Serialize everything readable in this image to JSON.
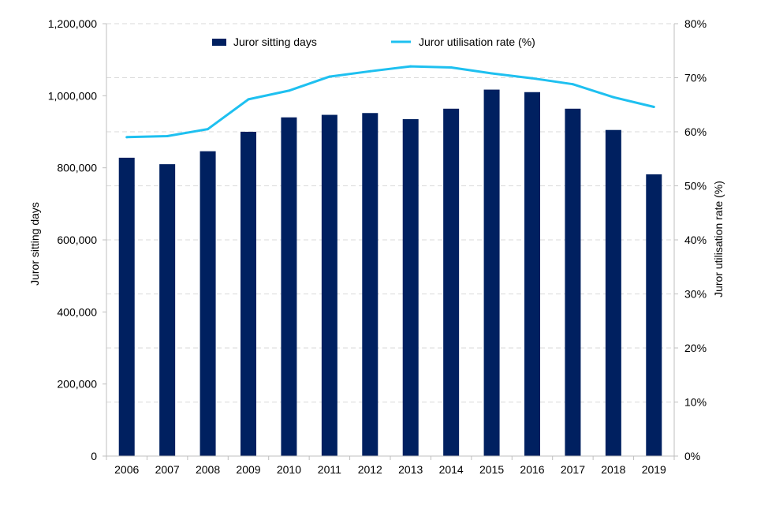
{
  "chart_data": {
    "type": "bar",
    "categories": [
      "2006",
      "2007",
      "2008",
      "2009",
      "2010",
      "2011",
      "2012",
      "2013",
      "2014",
      "2015",
      "2016",
      "2017",
      "2018",
      "2019"
    ],
    "series": [
      {
        "name": "Juror sitting days",
        "type": "bar",
        "axis": "left",
        "color": "#002060",
        "values": [
          828000,
          810000,
          846000,
          900000,
          940000,
          947000,
          952000,
          935000,
          964000,
          1017000,
          1010000,
          964000,
          905000,
          782000
        ]
      },
      {
        "name": "Juror utilisation rate (%)",
        "type": "line",
        "axis": "right",
        "color": "#1ec0f0",
        "values": [
          59.0,
          59.2,
          60.5,
          66.0,
          67.6,
          70.2,
          71.2,
          72.1,
          71.9,
          70.8,
          69.9,
          68.8,
          66.4,
          64.6
        ]
      }
    ],
    "ylabel": "Juror sitting days",
    "y2label": "Juror utilisation rate (%)",
    "ylim": [
      0,
      1200000
    ],
    "y2lim": [
      0,
      80
    ],
    "yticks": [
      "0",
      "200,000",
      "400,000",
      "600,000",
      "800,000",
      "1,000,000",
      "1,200,000"
    ],
    "y2ticks": [
      "0%",
      "10%",
      "20%",
      "30%",
      "40%",
      "50%",
      "60%",
      "70%",
      "80%"
    ],
    "grid": true,
    "legend_position": "top"
  }
}
